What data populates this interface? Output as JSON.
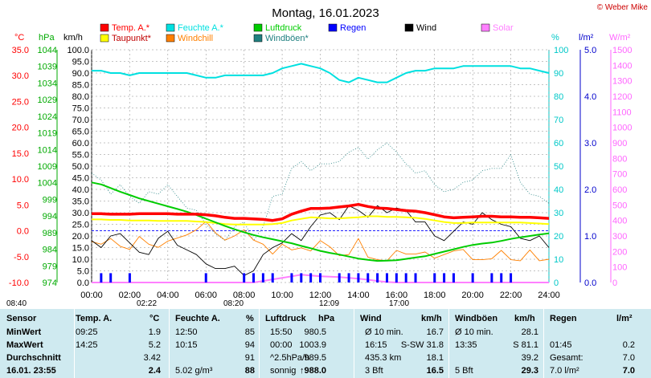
{
  "title": "Montag, 16.01.2023",
  "copyright": "© Weber Mike",
  "colors": {
    "temp": "#ff0000",
    "feuchte": "#00e0e0",
    "luftdruck": "#00cc00",
    "regen": "#0000ff",
    "wind": "#000000",
    "solar": "#ff80ff",
    "taupunkt": "#ffff00",
    "windchill": "#ff8000",
    "windboeen": "#208080",
    "table_bg": "#cfeaf0",
    "axis_temp": "#ff0000",
    "axis_hpa": "#00aa00",
    "axis_feuchte": "#00c8c8",
    "axis_regen": "#0000cc",
    "axis_solar": "#ff66ff"
  },
  "legend": [
    {
      "label": "Temp. A.*",
      "color": "#ff0000"
    },
    {
      "label": "Feuchte A.*",
      "color": "#00e0e0"
    },
    {
      "label": "Luftdruck",
      "color": "#00cc00"
    },
    {
      "label": "Regen",
      "color": "#0000ff"
    },
    {
      "label": "Wind",
      "color": "#000000"
    },
    {
      "label": "Solar",
      "color": "#ff80ff"
    },
    {
      "label": "Taupunkt*",
      "color": "#ffff00"
    },
    {
      "label": "Windchill",
      "color": "#ff8000"
    },
    {
      "label": "Windböen*",
      "color": "#208080"
    }
  ],
  "axis_units": {
    "temp": "°C",
    "hpa": "hPa",
    "kmh": "km/h",
    "feuchte": "%",
    "regen": "l/m²",
    "solar": "W/m²"
  },
  "chart_data": {
    "type": "line",
    "x": [
      "00:00",
      "00:30",
      "01:00",
      "01:30",
      "02:00",
      "02:30",
      "03:00",
      "03:30",
      "04:00",
      "04:30",
      "05:00",
      "05:30",
      "06:00",
      "06:30",
      "07:00",
      "07:30",
      "08:00",
      "08:30",
      "09:00",
      "09:30",
      "10:00",
      "10:30",
      "11:00",
      "11:30",
      "12:00",
      "12:30",
      "13:00",
      "13:30",
      "14:00",
      "14:30",
      "15:00",
      "15:30",
      "16:00",
      "16:30",
      "17:00",
      "17:30",
      "18:00",
      "18:30",
      "19:00",
      "19:30",
      "20:00",
      "20:30",
      "21:00",
      "21:30",
      "22:00",
      "22:30",
      "23:00",
      "23:30",
      "24:00"
    ],
    "xticks": [
      "00:00",
      "02:00",
      "04:00",
      "06:00",
      "08:00",
      "10:00",
      "12:00",
      "14:00",
      "16:00",
      "18:00",
      "20:00",
      "22:00",
      "24:00"
    ],
    "temp_axis": {
      "label": "°C",
      "ticks": [
        "35.0",
        "30.0",
        "25.0",
        "20.0",
        "15.0",
        "10.0",
        "5.0",
        "0.0",
        "-5.0",
        "-10.0"
      ],
      "range": [
        -10,
        35
      ]
    },
    "hpa_axis": {
      "label": "hPa",
      "ticks": [
        "1044",
        "1039",
        "1034",
        "1029",
        "1024",
        "1019",
        "1014",
        "1009",
        "1004",
        "999",
        "994",
        "989",
        "984",
        "979",
        "974"
      ],
      "range": [
        974,
        1044
      ]
    },
    "kmh_axis": {
      "label": "km/h",
      "ticks": [
        "100.0",
        "95.0",
        "90.0",
        "85.0",
        "80.0",
        "75.0",
        "70.0",
        "65.0",
        "60.0",
        "55.0",
        "50.0",
        "45.0",
        "40.0",
        "35.0",
        "30.0",
        "25.0",
        "20.0",
        "15.0",
        "10.0",
        "5.0",
        "0.0"
      ],
      "range": [
        0,
        100
      ]
    },
    "feuchte_axis": {
      "label": "%",
      "ticks": [
        "100",
        "90",
        "80",
        "70",
        "60",
        "50",
        "40",
        "30",
        "20",
        "10",
        "0"
      ],
      "range": [
        0,
        100
      ]
    },
    "regen_axis": {
      "label": "l/m²",
      "ticks": [
        "5.0",
        "4.0",
        "3.0",
        "2.0",
        "1.0",
        "0.0"
      ],
      "range": [
        0,
        5
      ]
    },
    "solar_axis": {
      "label": "W/m²",
      "ticks": [
        "1500",
        "1400",
        "1300",
        "1200",
        "1100",
        "1000",
        "900",
        "800",
        "700",
        "600",
        "500",
        "400",
        "300",
        "200",
        "100",
        "0"
      ],
      "range": [
        0,
        1500
      ]
    },
    "series": [
      {
        "name": "Temp. A.*",
        "axis": "temp",
        "values": [
          3.3,
          3.3,
          3.2,
          3.2,
          3.2,
          3.3,
          3.3,
          3.3,
          3.3,
          3.2,
          3.2,
          3.2,
          3.1,
          2.9,
          2.6,
          2.4,
          2.4,
          2.3,
          2.2,
          2.0,
          2.3,
          3.2,
          3.8,
          4.3,
          4.3,
          4.4,
          4.6,
          4.8,
          5.1,
          4.7,
          4.4,
          4.3,
          4.1,
          3.9,
          3.8,
          3.5,
          3.1,
          2.7,
          2.5,
          2.6,
          2.7,
          2.8,
          2.8,
          2.7,
          2.7,
          2.6,
          2.6,
          2.5,
          2.4
        ]
      },
      {
        "name": "Taupunkt*",
        "axis": "temp",
        "values": [
          2.2,
          2.2,
          2.1,
          2.1,
          2.0,
          2.0,
          2.0,
          1.9,
          1.9,
          1.9,
          1.9,
          1.8,
          1.7,
          1.5,
          1.3,
          1.2,
          1.2,
          1.2,
          1.2,
          1.3,
          1.5,
          2.0,
          2.3,
          2.6,
          2.5,
          2.4,
          2.4,
          2.5,
          2.6,
          2.8,
          2.8,
          2.7,
          2.7,
          2.6,
          2.5,
          2.3,
          2.0,
          1.7,
          1.5,
          1.5,
          1.6,
          1.6,
          1.6,
          1.6,
          1.6,
          1.6,
          1.5,
          1.4,
          1.3
        ]
      },
      {
        "name": "Feuchte A.*",
        "axis": "feuchte",
        "values": [
          91,
          91,
          90,
          90,
          89,
          90,
          90,
          90,
          90,
          90,
          90,
          89,
          88,
          88,
          89,
          89,
          89,
          89,
          89,
          90,
          92,
          93,
          94,
          93,
          92,
          90,
          87,
          86,
          88,
          87,
          86,
          86,
          88,
          90,
          91,
          91,
          92,
          92,
          92,
          93,
          93,
          93,
          93,
          93,
          93,
          92,
          92,
          91,
          90
        ]
      },
      {
        "name": "Luftdruck",
        "axis": "hpa",
        "values": [
          1004.1,
          1003.5,
          1002.4,
          1001.3,
          1000.3,
          999.3,
          998.5,
          997.7,
          996.9,
          996.1,
          995.3,
          994.3,
          993.2,
          992.1,
          991.0,
          990.0,
          989.1,
          988.3,
          987.6,
          987.0,
          986.4,
          985.8,
          985.0,
          984.3,
          983.5,
          982.9,
          982.4,
          981.8,
          981.2,
          980.8,
          980.5,
          980.6,
          980.7,
          981.1,
          981.5,
          981.9,
          982.6,
          983.3,
          984.0,
          984.7,
          985.3,
          985.7,
          986.0,
          986.5,
          987.1,
          987.6,
          988.0,
          988.4,
          988.8
        ]
      },
      {
        "name": "Wind",
        "axis": "kmh",
        "values": [
          18,
          15,
          20,
          21,
          17,
          13,
          12,
          19,
          22,
          16,
          14,
          12,
          8,
          6,
          6,
          7,
          3,
          5,
          12,
          15,
          17,
          21,
          18,
          24,
          29,
          30,
          27,
          33,
          31,
          28,
          33,
          30,
          32,
          31,
          26,
          26,
          20,
          18,
          22,
          26,
          25,
          30,
          27,
          25,
          24,
          19,
          18,
          20,
          15
        ]
      },
      {
        "name": "Windchill",
        "axis": "temp",
        "values": [
          -2.1,
          -2.6,
          -1.5,
          -3.0,
          -3.6,
          -1.1,
          -2.6,
          -3.2,
          -2.0,
          -1.4,
          -0.8,
          0.2,
          1.8,
          -0.4,
          -1.8,
          -1.0,
          0.2,
          -1.8,
          -2.6,
          -4.5,
          -2.6,
          -3.7,
          -3.3,
          -3.9,
          -1.9,
          -3.1,
          -4.8,
          -4.6,
          -1.5,
          -5.1,
          -5.6,
          -5.8,
          -3.8,
          -4.5,
          -4.5,
          -4.1,
          -5.3,
          -4.6,
          -3.9,
          -3.6,
          -5.6,
          -5.6,
          -5.4,
          -3.8,
          -5.6,
          -5.8,
          -3.7,
          -5.8,
          -5.5
        ]
      },
      {
        "name": "Windböen*",
        "axis": "kmh",
        "values": [
          47,
          44,
          38,
          42,
          37,
          34,
          39,
          38,
          42,
          37,
          32,
          31,
          25,
          21,
          18,
          24,
          26,
          18,
          24,
          37,
          38,
          49,
          52,
          48,
          51,
          51,
          52,
          56,
          58,
          53,
          57,
          60,
          56,
          51,
          47,
          48,
          42,
          39,
          40,
          43,
          44,
          48,
          49,
          49,
          55,
          43,
          38,
          37,
          34
        ]
      },
      {
        "name": "Solar",
        "axis": "solar",
        "values": [
          0,
          0,
          0,
          0,
          0,
          0,
          0,
          0,
          0,
          0,
          0,
          0,
          0,
          0,
          0,
          0,
          0,
          0,
          10,
          20,
          30,
          40,
          50,
          45,
          40,
          38,
          35,
          30,
          25,
          18,
          10,
          3,
          0,
          0,
          0,
          0,
          0,
          0,
          0,
          0,
          0,
          0,
          0,
          0,
          0,
          0,
          0,
          0,
          0
        ]
      },
      {
        "name": "Regen",
        "axis": "regen",
        "values": [
          0,
          0.2,
          0.2,
          0,
          0.2,
          0,
          0,
          0,
          0,
          0,
          0,
          0,
          0.2,
          0,
          0,
          0,
          0.2,
          0.2,
          0.2,
          0.2,
          0,
          0.2,
          0.2,
          0.2,
          0.2,
          0,
          0.2,
          0.2,
          0.2,
          0.2,
          0.2,
          0.2,
          0.2,
          0.2,
          0.2,
          0,
          0.2,
          0.2,
          0.2,
          0,
          0.2,
          0,
          0.2,
          0.2,
          0.2,
          0,
          0,
          0,
          0
        ]
      }
    ],
    "sun_events": [
      "08:40",
      "02:22",
      "08:20",
      "12:09",
      "17:00"
    ]
  },
  "table": {
    "headers": [
      "Sensor",
      "Temp. A.",
      "°C",
      "Feuchte A.",
      "%",
      "Luftdruck",
      "hPa",
      "Wind",
      "km/h",
      "Windböen",
      "km/h",
      "Regen",
      "l/m²"
    ],
    "rows": [
      {
        "label": "MinWert",
        "cells": [
          "09:25",
          "1.9",
          "12:50",
          "85",
          "15:50",
          "980.5",
          "Ø 10 min.",
          "16.7",
          "Ø 10 min.",
          "28.1",
          "",
          ""
        ]
      },
      {
        "label": "MaxWert",
        "cells": [
          "14:25",
          "5.2",
          "10:15",
          "94",
          "00:00",
          "1003.9",
          "16:15",
          "S-SW 31.8",
          "13:35",
          "S 81.1",
          "01:45",
          "0.2"
        ]
      },
      {
        "label": "Durchschnitt",
        "cells": [
          "",
          "3.42",
          "",
          "91",
          "^2.5hPa/h",
          "989.5",
          "435.3 km",
          "18.1",
          "",
          "39.2",
          "Gesamt:",
          "7.0"
        ]
      },
      {
        "label": "16.01. 23:55",
        "cells": [
          "",
          "2.4",
          "5.02 g/m³",
          "88",
          "sonnig",
          "↑988.0",
          "3 Bft",
          "16.5",
          "5 Bft",
          "29.3",
          "7.0 l/m²",
          "7.0"
        ]
      }
    ]
  }
}
